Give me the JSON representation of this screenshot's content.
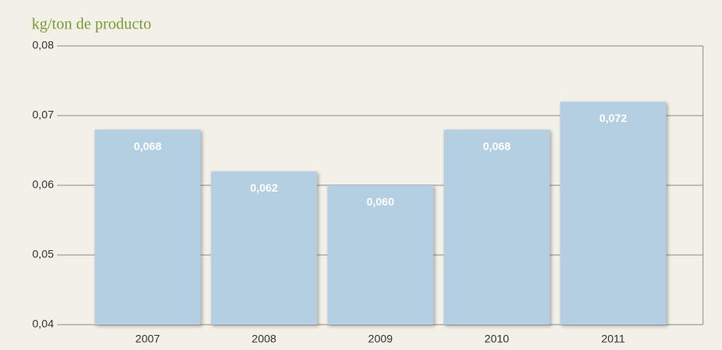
{
  "chart_data": {
    "type": "bar",
    "y_label": "kg/ton de producto",
    "categories": [
      "2007",
      "2008",
      "2009",
      "2010",
      "2011"
    ],
    "values": [
      0.068,
      0.062,
      0.06,
      0.068,
      0.072
    ],
    "value_labels": [
      "0,068",
      "0,062",
      "0,060",
      "0,068",
      "0,072"
    ],
    "color": "#b4cfe2",
    "ylim": [
      0.04,
      0.08
    ],
    "yticks": [
      {
        "value": 0.04,
        "label": "0,04"
      },
      {
        "value": 0.05,
        "label": "0,05"
      },
      {
        "value": 0.06,
        "label": "0,06"
      },
      {
        "value": 0.07,
        "label": "0,07"
      },
      {
        "value": 0.08,
        "label": "0,08"
      }
    ],
    "grid": true
  }
}
